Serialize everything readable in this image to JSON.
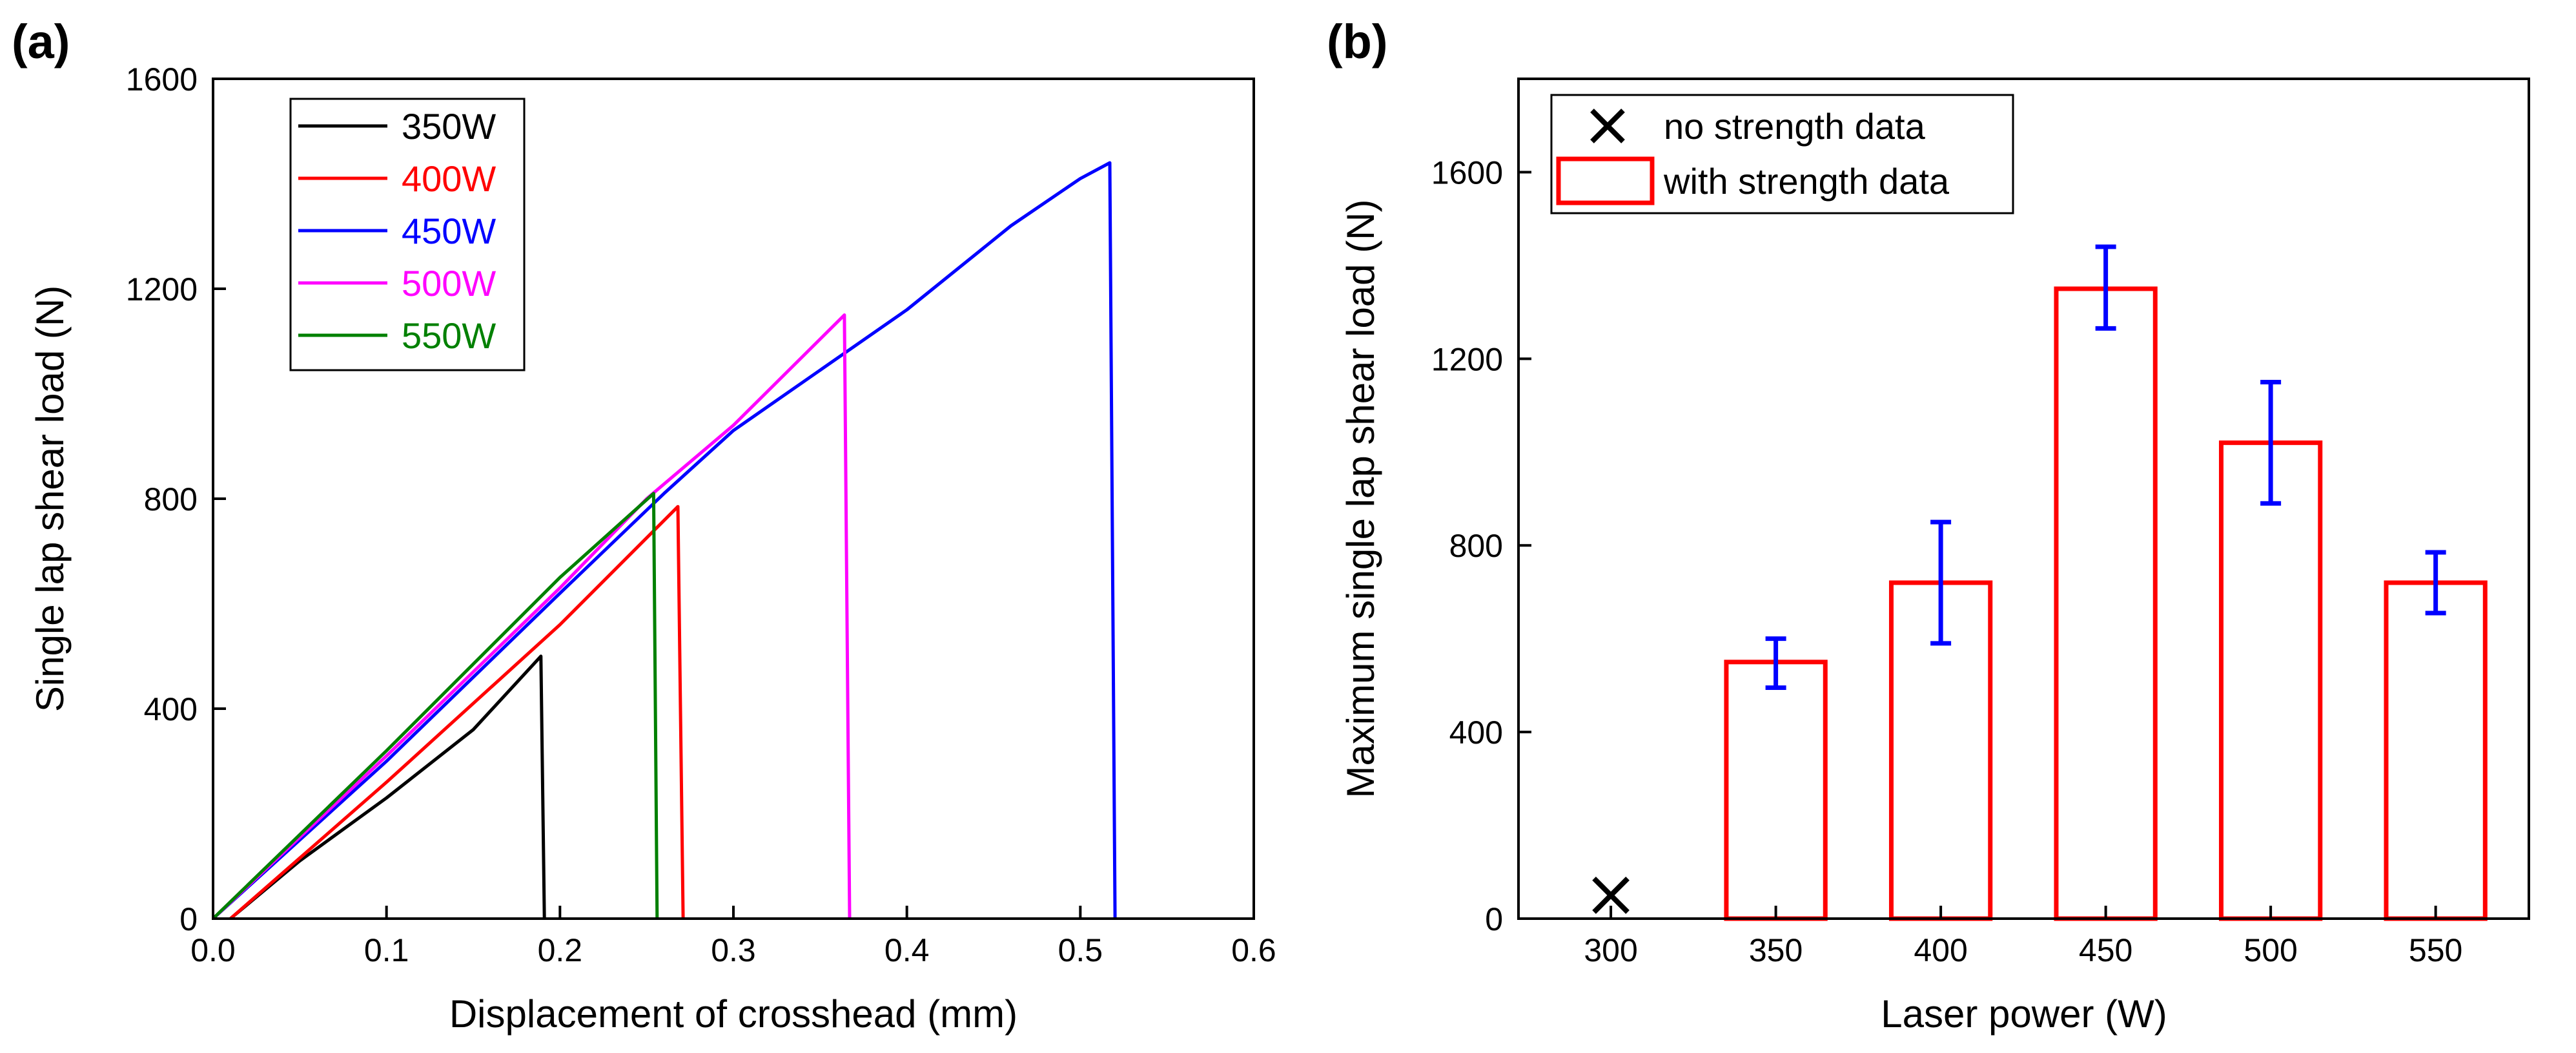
{
  "chart_data": [
    {
      "panel": "(a)",
      "type": "line",
      "title": "",
      "xlabel": "Displacement of crosshead (mm)",
      "ylabel": "Single lap shear load (N)",
      "xlim": [
        0.0,
        0.6
      ],
      "ylim": [
        0,
        1600
      ],
      "xticks": [
        "0.0",
        "0.1",
        "0.2",
        "0.3",
        "0.4",
        "0.5",
        "0.6"
      ],
      "yticks": [
        "0",
        "400",
        "800",
        "1200",
        "1600"
      ],
      "grid": false,
      "legend_position": "top-left",
      "series": [
        {
          "name": "350W",
          "color": "#000000",
          "points": [
            [
              0.01,
              0
            ],
            [
              0.05,
              110
            ],
            [
              0.1,
              230
            ],
            [
              0.15,
              360
            ],
            [
              0.189,
              500
            ],
            [
              0.191,
              0
            ]
          ]
        },
        {
          "name": "400W",
          "color": "#ff0000",
          "points": [
            [
              0.01,
              0
            ],
            [
              0.1,
              260
            ],
            [
              0.2,
              560
            ],
            [
              0.268,
              785
            ],
            [
              0.271,
              0
            ]
          ]
        },
        {
          "name": "450W",
          "color": "#0000ff",
          "points": [
            [
              0.0,
              0
            ],
            [
              0.1,
              300
            ],
            [
              0.2,
              620
            ],
            [
              0.26,
              810
            ],
            [
              0.3,
              930
            ],
            [
              0.4,
              1160
            ],
            [
              0.46,
              1320
            ],
            [
              0.5,
              1410
            ],
            [
              0.517,
              1440
            ],
            [
              0.52,
              0
            ]
          ]
        },
        {
          "name": "500W",
          "color": "#ff00ff",
          "points": [
            [
              0.0,
              0
            ],
            [
              0.1,
              310
            ],
            [
              0.2,
              630
            ],
            [
              0.25,
              800
            ],
            [
              0.3,
              940
            ],
            [
              0.364,
              1150
            ],
            [
              0.367,
              0
            ]
          ]
        },
        {
          "name": "550W",
          "color": "#008000",
          "points": [
            [
              0.0,
              0
            ],
            [
              0.1,
              320
            ],
            [
              0.2,
              650
            ],
            [
              0.254,
              810
            ],
            [
              0.256,
              0
            ]
          ]
        }
      ]
    },
    {
      "panel": "(b)",
      "type": "bar",
      "title": "",
      "xlabel": "Laser power (W)",
      "ylabel": "Maximum single lap shear load (N)",
      "ylim": [
        0,
        1800
      ],
      "xticks": [
        "300",
        "350",
        "400",
        "450",
        "500",
        "550"
      ],
      "yticks": [
        "0",
        "400",
        "800",
        "1200",
        "1600"
      ],
      "grid": false,
      "legend_position": "top-left",
      "legend": [
        {
          "label": "no strength data",
          "marker": "x"
        },
        {
          "label": "with strength data",
          "marker": "box"
        }
      ],
      "bar_color": "#ff0000",
      "error_color": "#0000ff",
      "no_data": {
        "category": "300",
        "value": 50
      },
      "bars": [
        {
          "category": "350",
          "value": 550,
          "low": 495,
          "high": 600
        },
        {
          "category": "400",
          "value": 720,
          "low": 590,
          "high": 850
        },
        {
          "category": "450",
          "value": 1350,
          "low": 1265,
          "high": 1440
        },
        {
          "category": "500",
          "value": 1020,
          "low": 890,
          "high": 1150
        },
        {
          "category": "550",
          "value": 720,
          "low": 655,
          "high": 785
        }
      ]
    }
  ]
}
